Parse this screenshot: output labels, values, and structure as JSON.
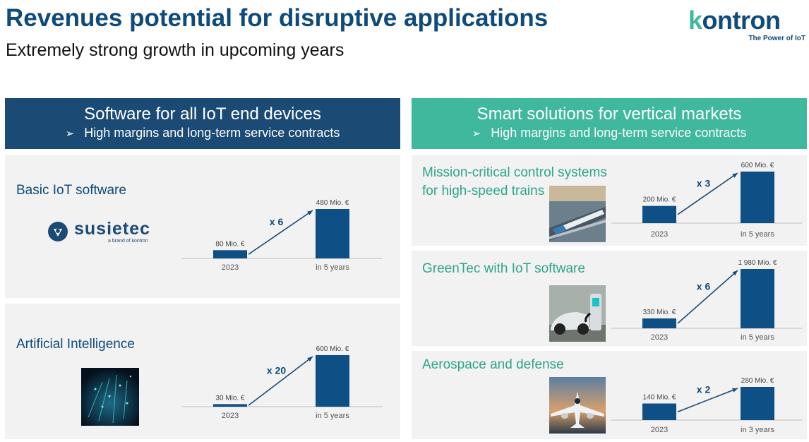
{
  "title": "Revenues potential for disruptive applications",
  "subtitle": "Extremely strong growth in upcoming years",
  "logo": {
    "word": "kontron",
    "tagline": "The Power of IoT"
  },
  "left_header": {
    "title": "Software for all IoT end  devices",
    "bullet": "High margins and long-term service contracts"
  },
  "right_header": {
    "title": "Smart solutions for vertical markets",
    "bullet": "High margins and long-term service contracts"
  },
  "panels": {
    "basic": {
      "label": "Basic IoT software",
      "brand": "susietec",
      "brand_sub": "a brand of kontron"
    },
    "ai": {
      "label": "Artificial Intelligence"
    },
    "trains": {
      "label_line1": "Mission-critical control systems",
      "label_line2": "for high-speed trains"
    },
    "greentec": {
      "label": "GreenTec with IoT software"
    },
    "aero": {
      "label": "Aerospace and defense"
    }
  },
  "colors": {
    "bar": "#0e4f86",
    "primary": "#1b4b75",
    "accent": "#3fb89d"
  },
  "chart_data": [
    {
      "type": "bar",
      "categories": [
        "2023",
        "in 5 years"
      ],
      "values": [
        80,
        480
      ],
      "data_labels": [
        "80 Mio. €",
        "480 Mio. €"
      ],
      "multiplier": "x 6"
    },
    {
      "type": "bar",
      "categories": [
        "2023",
        "in 5 years"
      ],
      "values": [
        30,
        600
      ],
      "data_labels": [
        "30 Mio. €",
        "600 Mio. €"
      ],
      "multiplier": "x 20"
    },
    {
      "type": "bar",
      "categories": [
        "2023",
        "in 5 years"
      ],
      "values": [
        200,
        600
      ],
      "data_labels": [
        "200 Mio. €",
        "600 Mio. €"
      ],
      "multiplier": "x 3"
    },
    {
      "type": "bar",
      "categories": [
        "2023",
        "in 5 years"
      ],
      "values": [
        330,
        1980
      ],
      "data_labels": [
        "330 Mio. €",
        "1 980 Mio. €"
      ],
      "multiplier": "x 6"
    },
    {
      "type": "bar",
      "categories": [
        "2023",
        "in 3 years"
      ],
      "values": [
        140,
        280
      ],
      "data_labels": [
        "140 Mio. €",
        "280 Mio. €"
      ],
      "multiplier": "x 2"
    }
  ]
}
